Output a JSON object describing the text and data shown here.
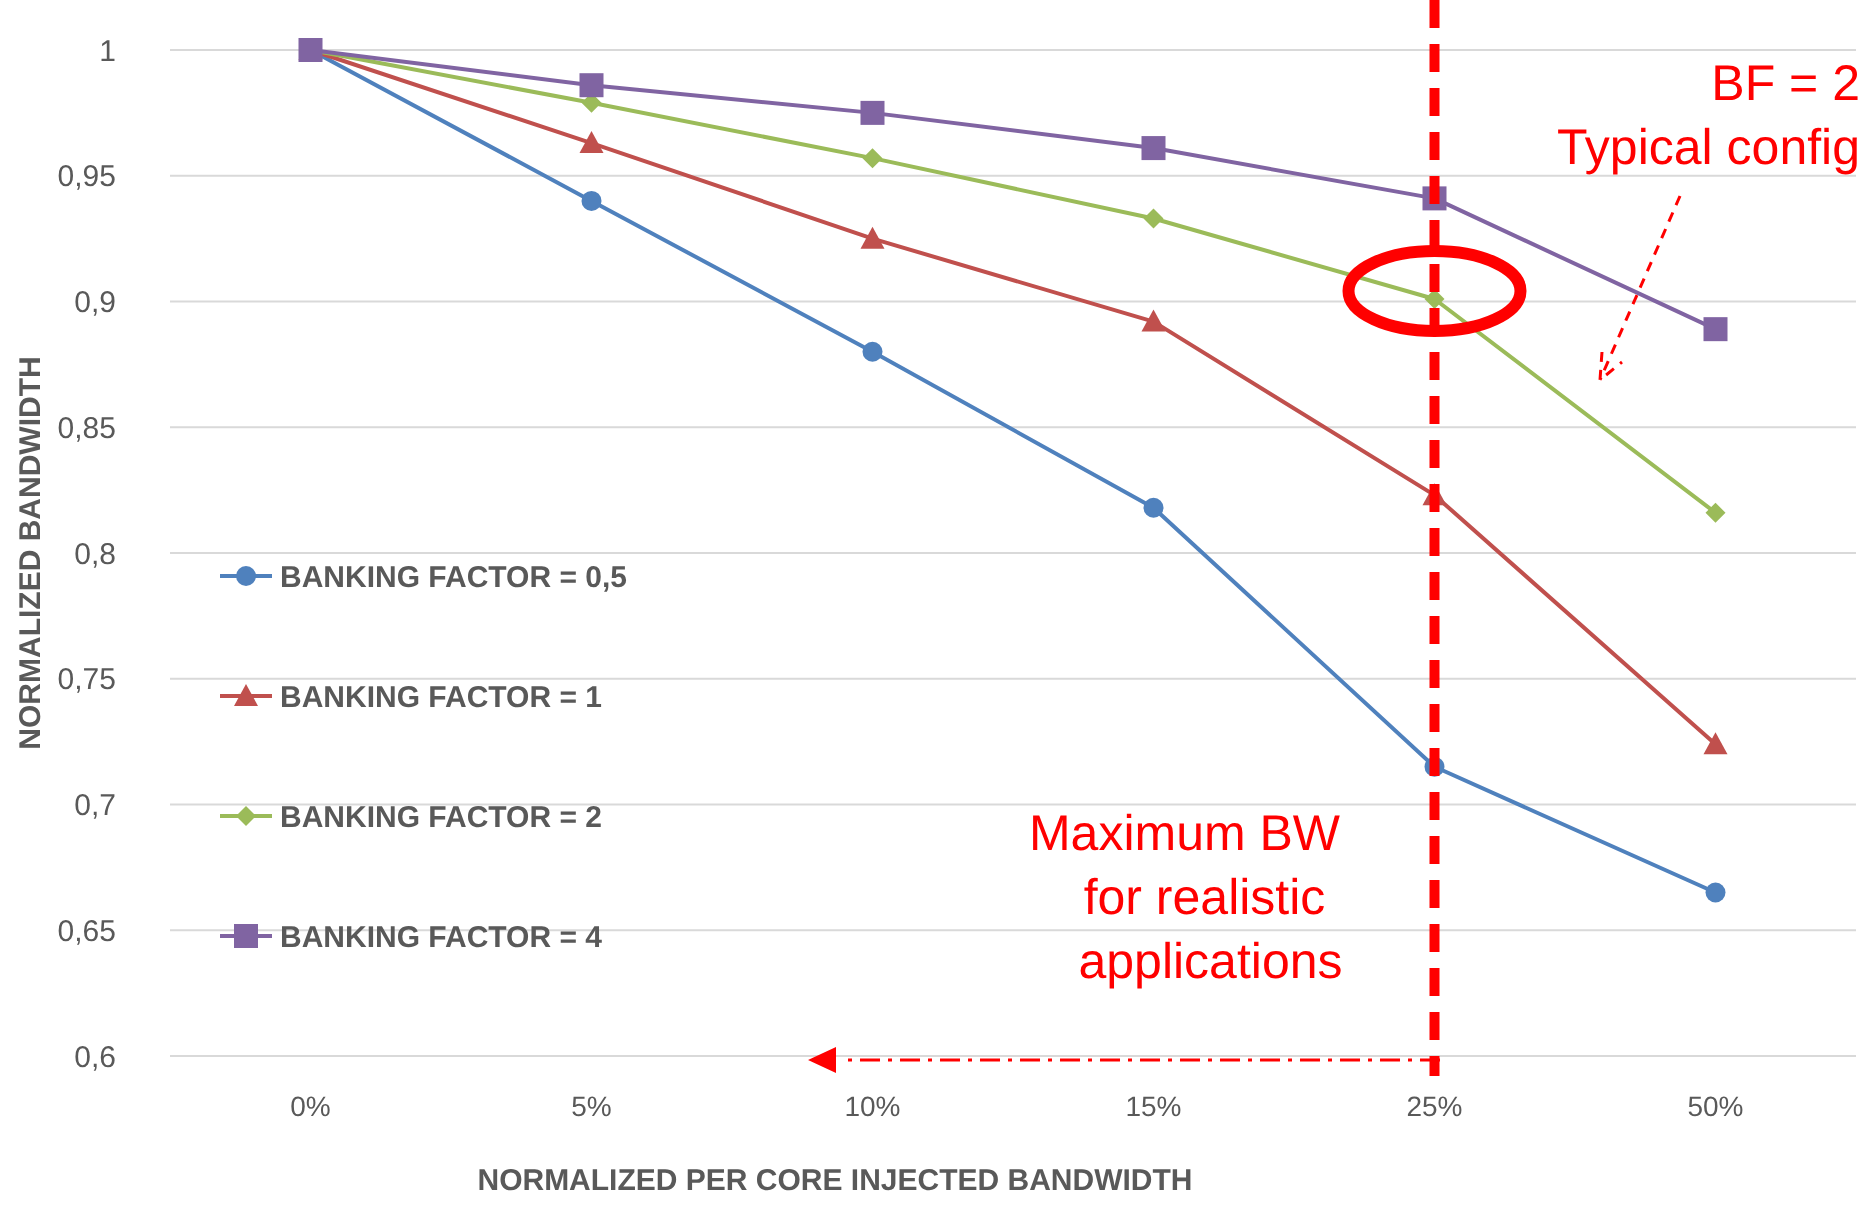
{
  "chart_data": {
    "type": "line",
    "xlabel": "NORMALIZED PER CORE INJECTED BANDWIDTH",
    "ylabel": "NORMALIZED BANDWIDTH",
    "categories": [
      "0%",
      "5%",
      "10%",
      "15%",
      "25%",
      "50%"
    ],
    "series": [
      {
        "name": "BANKING FACTOR = 0,5",
        "color": "#4f81bd",
        "marker": "circle",
        "values": [
          1,
          0.94,
          0.88,
          0.818,
          0.715,
          0.665
        ]
      },
      {
        "name": "BANKING FACTOR = 1",
        "color": "#c0504d",
        "marker": "triangle",
        "values": [
          1,
          0.963,
          0.925,
          0.892,
          0.823,
          0.724
        ]
      },
      {
        "name": "BANKING FACTOR = 2",
        "color": "#9bbb59",
        "marker": "diamond",
        "values": [
          1,
          0.979,
          0.957,
          0.933,
          0.901,
          0.816
        ]
      },
      {
        "name": "BANKING FACTOR = 4",
        "color": "#8064a2",
        "marker": "square",
        "values": [
          1,
          0.986,
          0.975,
          0.961,
          0.941,
          0.889
        ]
      }
    ],
    "ylim": [
      0.6,
      1
    ],
    "yticks": [
      {
        "value": 0.6,
        "label": "0,6"
      },
      {
        "value": 0.65,
        "label": "0,65"
      },
      {
        "value": 0.7,
        "label": "0,7"
      },
      {
        "value": 0.75,
        "label": "0,75"
      },
      {
        "value": 0.8,
        "label": "0,8"
      },
      {
        "value": 0.85,
        "label": "0,85"
      },
      {
        "value": 0.9,
        "label": "0,9"
      },
      {
        "value": 0.95,
        "label": "0,95"
      },
      {
        "value": 1,
        "label": "1"
      }
    ],
    "grid": "y",
    "legend": "left",
    "ref_lines": [
      {
        "axis": "x",
        "value": "25%",
        "color": "#ff0000",
        "line_style": "dashed"
      }
    ],
    "annotations": [
      "BF = 2\nTypical config",
      "Maximum BW\nfor realistic\napplications"
    ]
  }
}
